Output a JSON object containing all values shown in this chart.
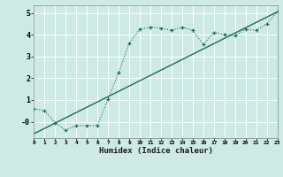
{
  "title": "",
  "xlabel": "Humidex (Indice chaleur)",
  "ylabel": "",
  "bg_color": "#ceeae5",
  "grid_color": "#ffffff",
  "line_color": "#1a6b5a",
  "xmin": 0,
  "xmax": 23,
  "ymin": -0.75,
  "ymax": 5.35,
  "yticks": [
    0,
    1,
    2,
    3,
    4,
    5
  ],
  "ytick_labels": [
    "-0",
    "1",
    "2",
    "3",
    "4",
    "5"
  ],
  "xticks": [
    0,
    1,
    2,
    3,
    4,
    5,
    6,
    7,
    8,
    9,
    10,
    11,
    12,
    13,
    14,
    15,
    16,
    17,
    18,
    19,
    20,
    21,
    22,
    23
  ],
  "line1_x": [
    0,
    1,
    2,
    3,
    4,
    5,
    6,
    7,
    8,
    9,
    10,
    11,
    12,
    13,
    14,
    15,
    16,
    17,
    18,
    19,
    20,
    21,
    22,
    23
  ],
  "line1_y": [
    0.6,
    0.5,
    -0.05,
    -0.38,
    -0.18,
    -0.18,
    -0.18,
    1.05,
    2.25,
    3.6,
    4.25,
    4.35,
    4.3,
    4.2,
    4.35,
    4.2,
    3.55,
    4.1,
    4.0,
    3.95,
    4.25,
    4.2,
    4.5,
    5.05
  ],
  "line2_x": [
    0,
    23
  ],
  "line2_y": [
    -0.55,
    5.05
  ]
}
